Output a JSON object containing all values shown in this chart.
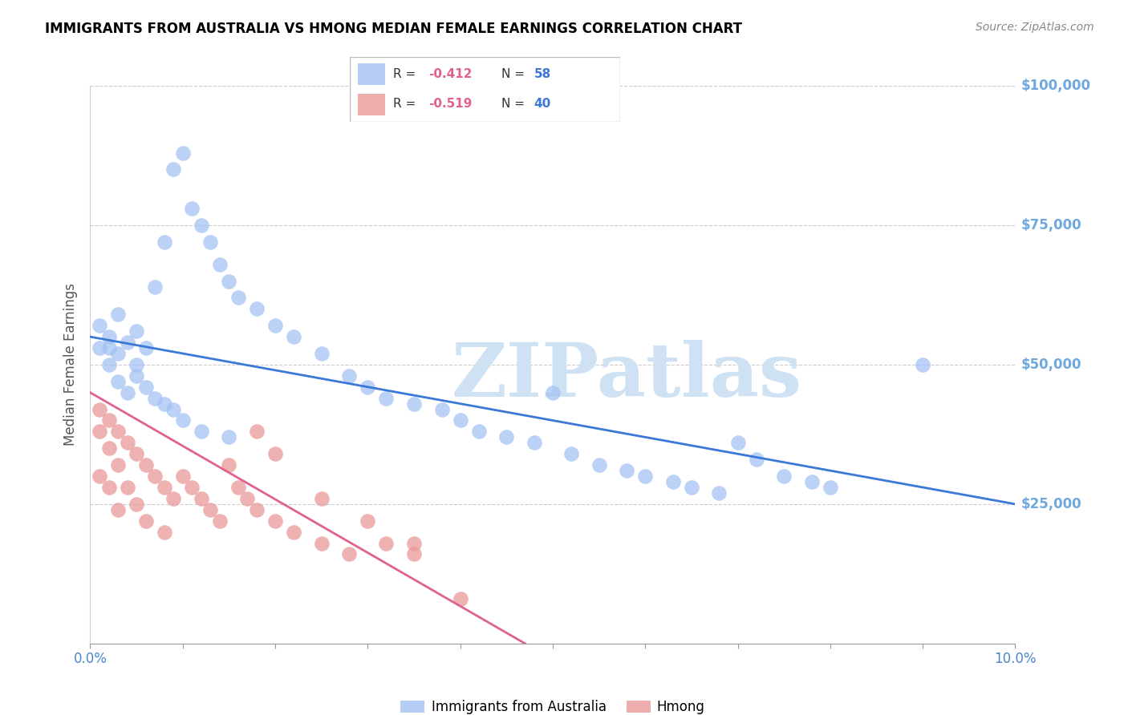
{
  "title": "IMMIGRANTS FROM AUSTRALIA VS HMONG MEDIAN FEMALE EARNINGS CORRELATION CHART",
  "source": "Source: ZipAtlas.com",
  "ylabel": "Median Female Earnings",
  "xmin": 0.0,
  "xmax": 0.1,
  "ymin": 0,
  "ymax": 100000,
  "yticks": [
    0,
    25000,
    50000,
    75000,
    100000
  ],
  "ytick_labels_right": [
    "",
    "$25,000",
    "$50,000",
    "$75,000",
    "$100,000"
  ],
  "R_australia": -0.412,
  "N_australia": 58,
  "R_hmong": -0.519,
  "N_hmong": 40,
  "color_australia": "#a4c2f4",
  "color_hmong": "#ea9999",
  "line_color_australia": "#3c78d8",
  "line_color_hmong": "#e06090",
  "right_label_color": "#6fa8dc",
  "watermark_text": "ZIPatlas",
  "watermark_color": "#cfe2f3",
  "legend_label_australia": "Immigrants from Australia",
  "legend_label_hmong": "Hmong",
  "aus_x": [
    0.001,
    0.002,
    0.002,
    0.003,
    0.003,
    0.004,
    0.005,
    0.005,
    0.006,
    0.007,
    0.008,
    0.009,
    0.01,
    0.011,
    0.012,
    0.013,
    0.014,
    0.015,
    0.016,
    0.018,
    0.02,
    0.022,
    0.025,
    0.028,
    0.03,
    0.032,
    0.035,
    0.038,
    0.04,
    0.042,
    0.045,
    0.048,
    0.05,
    0.052,
    0.055,
    0.058,
    0.06,
    0.063,
    0.065,
    0.068,
    0.07,
    0.072,
    0.075,
    0.078,
    0.08,
    0.001,
    0.002,
    0.003,
    0.004,
    0.005,
    0.006,
    0.007,
    0.008,
    0.009,
    0.01,
    0.012,
    0.015,
    0.09
  ],
  "aus_y": [
    57000,
    55000,
    53000,
    59000,
    52000,
    54000,
    56000,
    50000,
    53000,
    64000,
    72000,
    85000,
    88000,
    78000,
    75000,
    72000,
    68000,
    65000,
    62000,
    60000,
    57000,
    55000,
    52000,
    48000,
    46000,
    44000,
    43000,
    42000,
    40000,
    38000,
    37000,
    36000,
    45000,
    34000,
    32000,
    31000,
    30000,
    29000,
    28000,
    27000,
    36000,
    33000,
    30000,
    29000,
    28000,
    53000,
    50000,
    47000,
    45000,
    48000,
    46000,
    44000,
    43000,
    42000,
    40000,
    38000,
    37000,
    50000
  ],
  "hmong_x": [
    0.001,
    0.001,
    0.001,
    0.002,
    0.002,
    0.002,
    0.003,
    0.003,
    0.003,
    0.004,
    0.004,
    0.005,
    0.005,
    0.006,
    0.006,
    0.007,
    0.008,
    0.008,
    0.009,
    0.01,
    0.011,
    0.012,
    0.013,
    0.014,
    0.015,
    0.016,
    0.017,
    0.018,
    0.02,
    0.022,
    0.025,
    0.028,
    0.03,
    0.032,
    0.035,
    0.018,
    0.02,
    0.025,
    0.035,
    0.04
  ],
  "hmong_y": [
    42000,
    38000,
    30000,
    40000,
    35000,
    28000,
    38000,
    32000,
    24000,
    36000,
    28000,
    34000,
    25000,
    32000,
    22000,
    30000,
    28000,
    20000,
    26000,
    30000,
    28000,
    26000,
    24000,
    22000,
    32000,
    28000,
    26000,
    24000,
    22000,
    20000,
    18000,
    16000,
    22000,
    18000,
    16000,
    38000,
    34000,
    26000,
    18000,
    8000
  ],
  "aus_trend_x": [
    0.0,
    0.1
  ],
  "aus_trend_y": [
    55000,
    25000
  ],
  "hmong_trend_x": [
    0.0,
    0.047
  ],
  "hmong_trend_y": [
    45000,
    0
  ]
}
